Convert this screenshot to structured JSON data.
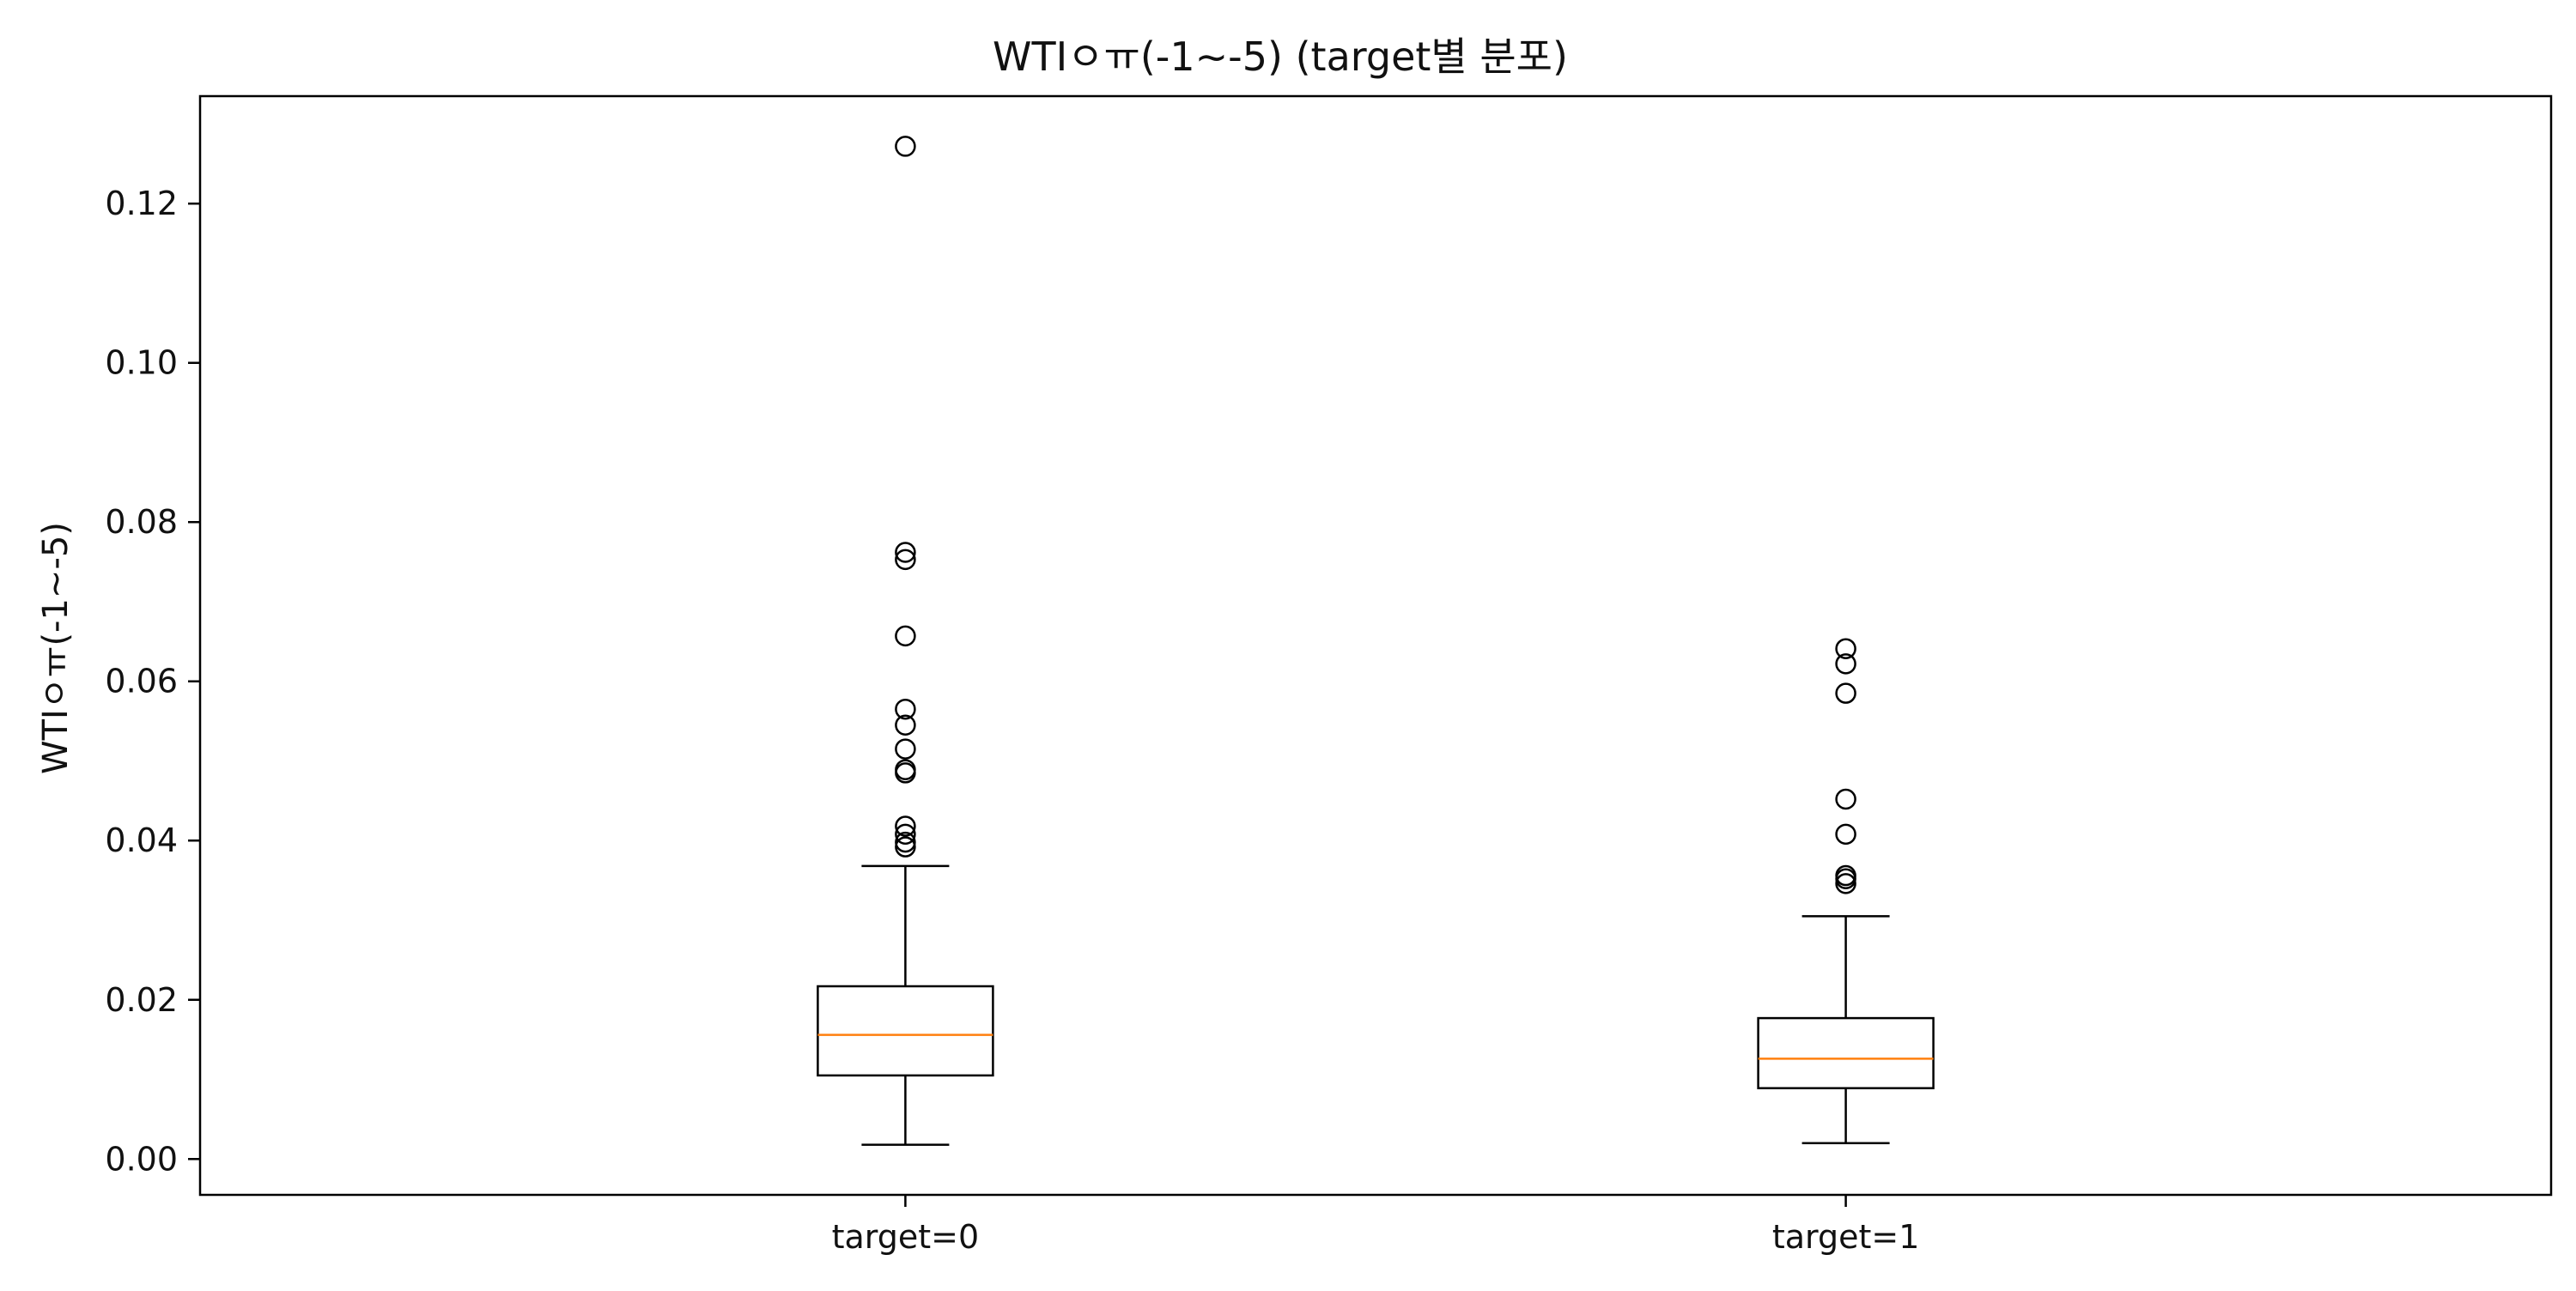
{
  "chart_data": {
    "type": "box",
    "title": "WTIㅇㅠ(-1~-5) (target별 분포)",
    "xlabel": "",
    "ylabel": "WTIㅇㅠ(-1~-5)",
    "ylim": [
      -0.0045,
      0.1335
    ],
    "yticks": [
      0.0,
      0.02,
      0.04,
      0.06,
      0.08,
      0.1,
      0.12
    ],
    "ytick_labels": [
      "0.00",
      "0.02",
      "0.04",
      "0.06",
      "0.08",
      "0.10",
      "0.12"
    ],
    "categories": [
      "target=0",
      "target=1"
    ],
    "boxes": [
      {
        "category": "target=0",
        "whisker_low": 0.0018,
        "q1": 0.0105,
        "median": 0.0156,
        "q3": 0.0217,
        "whisker_high": 0.0368,
        "outliers": [
          0.1272,
          0.0762,
          0.0753,
          0.0657,
          0.0565,
          0.0545,
          0.0515,
          0.0489,
          0.0485,
          0.0418,
          0.0408,
          0.0398,
          0.0392
        ]
      },
      {
        "category": "target=1",
        "whisker_low": 0.002,
        "q1": 0.0089,
        "median": 0.0126,
        "q3": 0.0177,
        "whisker_high": 0.0305,
        "outliers": [
          0.0641,
          0.0622,
          0.0585,
          0.0452,
          0.0408,
          0.0356,
          0.0352,
          0.0346
        ]
      }
    ],
    "grid": false,
    "legend": "none",
    "colors": {
      "box": "#000000",
      "median": "#ff7f0e",
      "flier": "#000000",
      "background": "#ffffff"
    }
  }
}
